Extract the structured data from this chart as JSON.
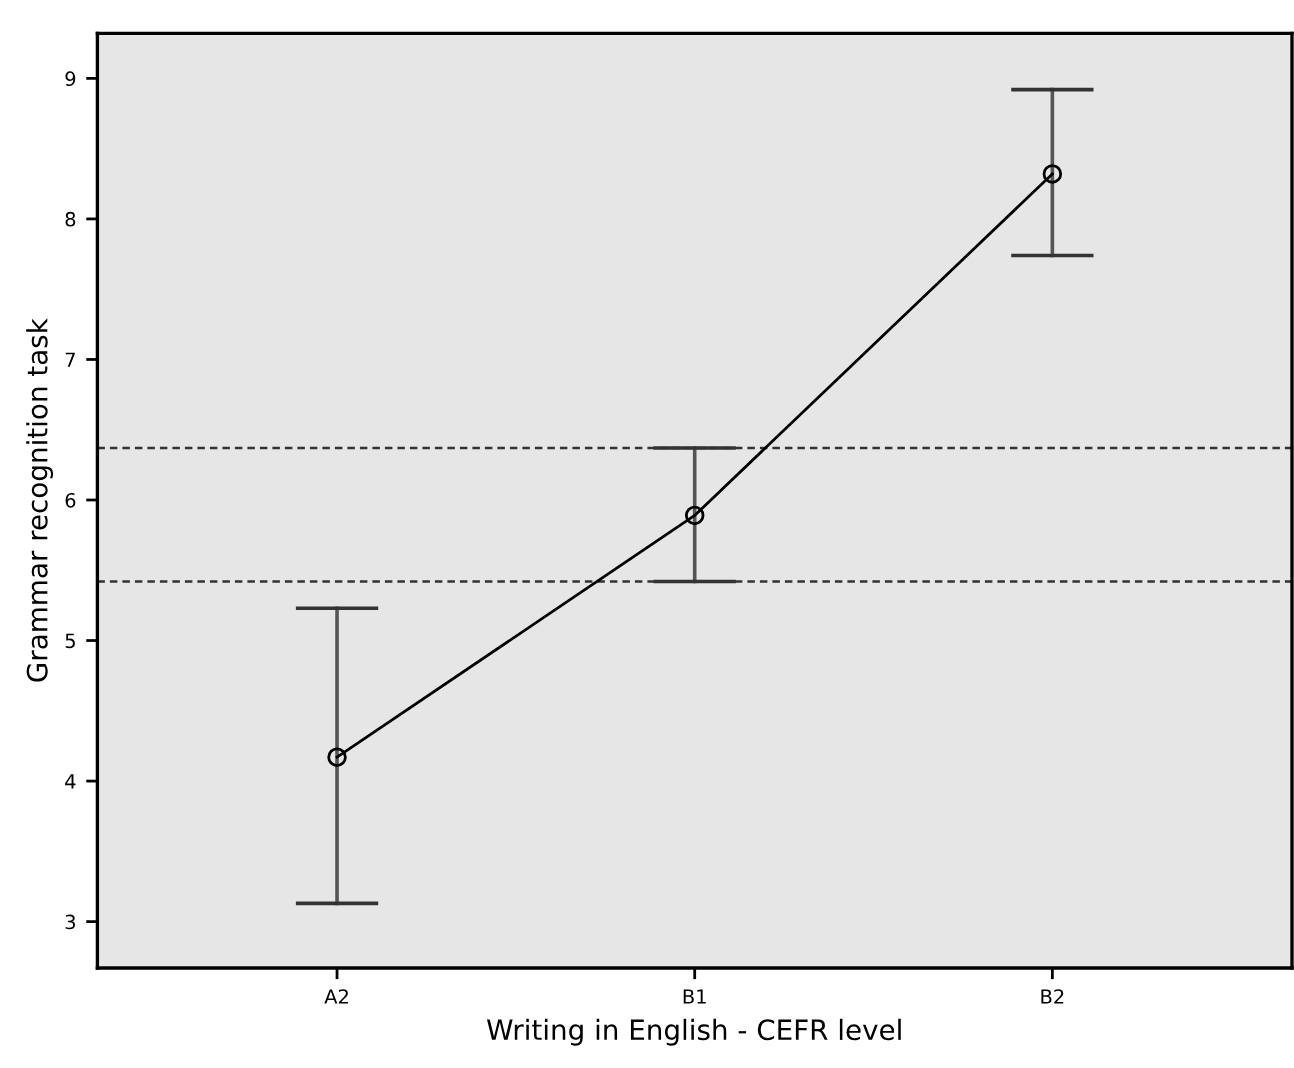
{
  "chart_data": {
    "type": "line",
    "xlabel": "Writing in English - CEFR level",
    "ylabel": "Grammar recognition task",
    "categories": [
      "A2",
      "B1",
      "B2"
    ],
    "series": [
      {
        "color": "#000000",
        "values": [
          4.17,
          5.89,
          8.32
        ],
        "errors": [
          [
            3.13,
            5.23
          ],
          [
            5.42,
            6.37
          ],
          [
            7.74,
            8.92
          ]
        ]
      }
    ],
    "ylim": [
      2.67,
      9.32
    ],
    "yticks": [
      3,
      4,
      5,
      6,
      7,
      8,
      9
    ],
    "ref_lines": [
      {
        "axis": "y",
        "value": 6.37,
        "line_style": "dashed"
      },
      {
        "axis": "y",
        "value": 5.42,
        "line_style": "dashed"
      }
    ],
    "marker": "circle",
    "line_style": "solid",
    "grid": false,
    "legend": false
  }
}
